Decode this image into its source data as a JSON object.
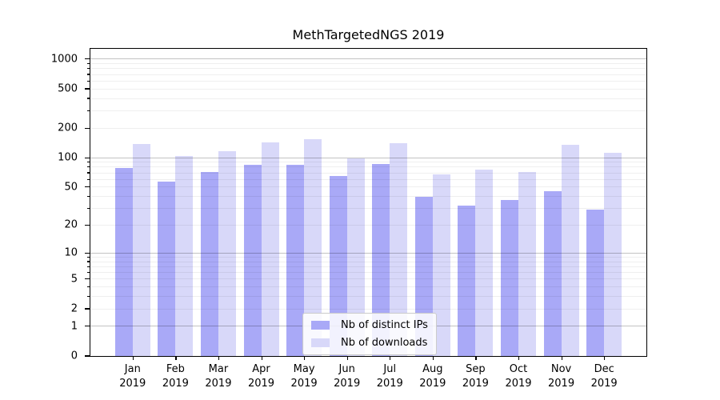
{
  "title": "MethTargetedNGS 2019",
  "chart_data": {
    "type": "bar",
    "title": "MethTargetedNGS 2019",
    "categories": [
      "Jan",
      "Feb",
      "Mar",
      "Apr",
      "May",
      "Jun",
      "Jul",
      "Aug",
      "Sep",
      "Oct",
      "Nov",
      "Dec"
    ],
    "year": "2019",
    "series": [
      {
        "name": "Nb of distinct IPs",
        "color": "#a9a9f7",
        "values": [
          78,
          57,
          71,
          85,
          84,
          65,
          86,
          40,
          32,
          37,
          45,
          29
        ]
      },
      {
        "name": "Nb of downloads",
        "color": "#d8d8f9",
        "values": [
          139,
          105,
          116,
          143,
          153,
          98,
          140,
          68,
          75,
          72,
          135,
          112
        ]
      }
    ],
    "xlabel": "",
    "ylabel": "",
    "yscale": "log1p",
    "yticks": [
      0,
      1,
      2,
      5,
      10,
      20,
      50,
      100,
      200,
      500,
      1000
    ],
    "ylim": [
      0,
      1270
    ],
    "grid": true,
    "legend_position": "bottom-center"
  }
}
